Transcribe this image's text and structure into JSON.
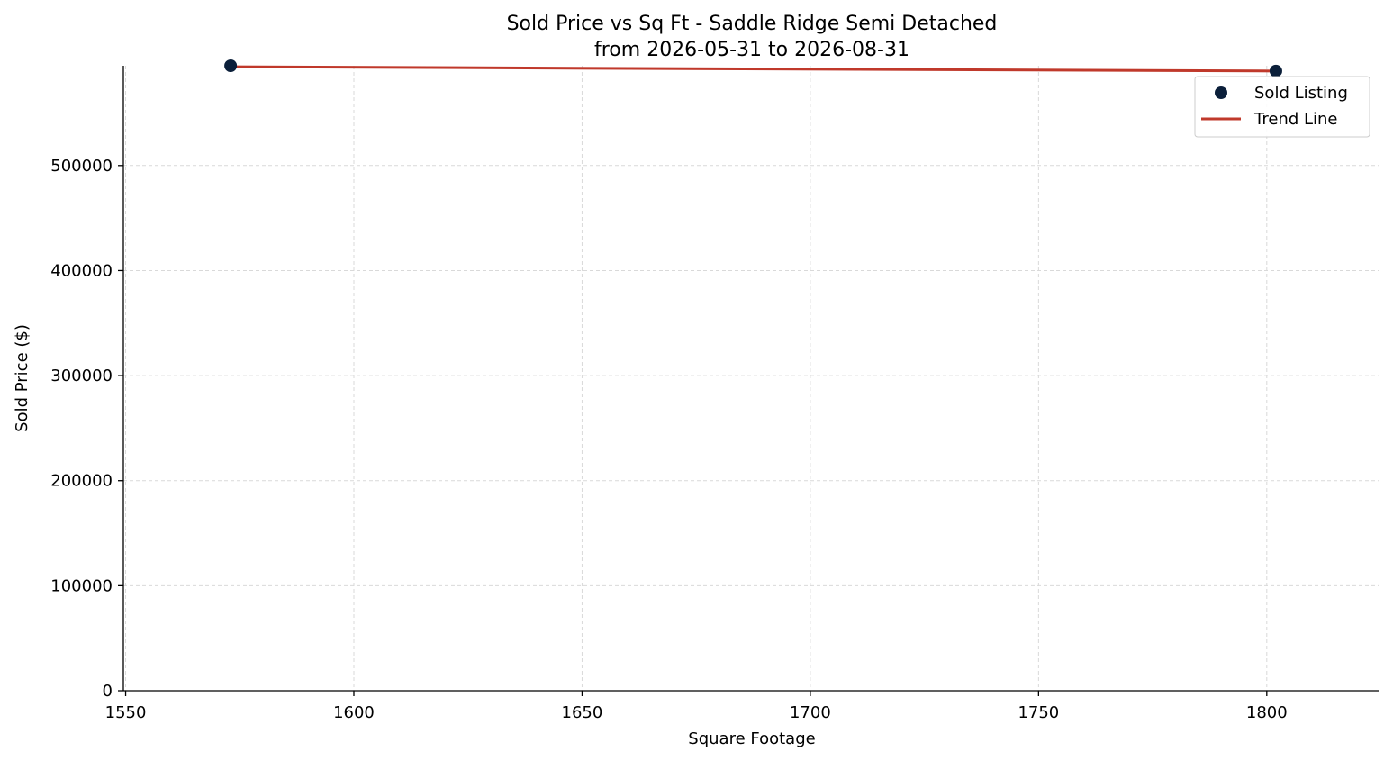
{
  "chart_data": {
    "type": "scatter",
    "title": "Sold Price vs Sq Ft - Saddle Ridge Semi Detached",
    "subtitle": "from 2026-05-31 to 2026-08-31",
    "xlabel": "Square Footage",
    "ylabel": "Sold Price ($)",
    "xlim": [
      1549.5,
      1824.5
    ],
    "ylim": [
      0,
      595000
    ],
    "xticks": [
      1550,
      1600,
      1650,
      1700,
      1750,
      1800
    ],
    "yticks": [
      0,
      100000,
      200000,
      300000,
      400000,
      500000
    ],
    "grid": true,
    "legend_position": "top-right",
    "series": [
      {
        "name": "Sold Listing",
        "kind": "scatter",
        "color": "#0b1f3a",
        "points": [
          {
            "x": 1573,
            "y": 595000
          },
          {
            "x": 1802,
            "y": 590000
          }
        ]
      },
      {
        "name": "Trend Line",
        "kind": "line",
        "color": "#c0392b",
        "points": [
          {
            "x": 1573,
            "y": 594000
          },
          {
            "x": 1802,
            "y": 590000
          }
        ]
      }
    ]
  }
}
